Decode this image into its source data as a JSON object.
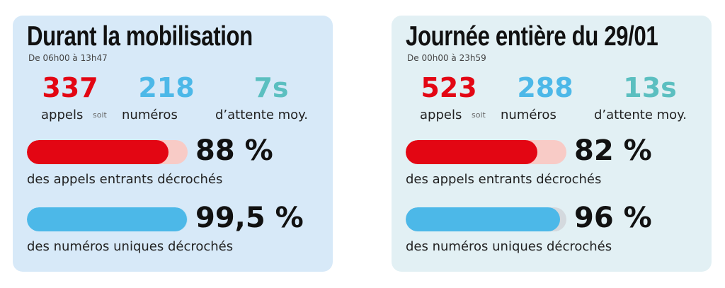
{
  "cards": [
    {
      "title": "Durant la mobilisation",
      "subtitle": "De 06h00 à 13h47",
      "stats": [
        {
          "value": "337",
          "label": "appels"
        },
        {
          "value": "218",
          "label": "numéros"
        },
        {
          "value": "7s",
          "label": "d’attente moy."
        }
      ],
      "connector": "soit",
      "bars": [
        {
          "value": 88,
          "label": "88 %",
          "caption": "des appels entrants décrochés"
        },
        {
          "value": 99.5,
          "label": "99,5 %",
          "caption": "des numéros uniques décrochés"
        }
      ]
    },
    {
      "title": "Journée entière du 29/01",
      "subtitle": "De 00h00 à 23h59",
      "stats": [
        {
          "value": "523",
          "label": "appels"
        },
        {
          "value": "288",
          "label": "numéros"
        },
        {
          "value": "13s",
          "label": "d’attente moy."
        }
      ],
      "connector": "soit",
      "bars": [
        {
          "value": 82,
          "label": "82 %",
          "caption": "des appels entrants décrochés"
        },
        {
          "value": 96,
          "label": "96 %",
          "caption": "des numéros uniques décrochés"
        }
      ]
    }
  ]
}
